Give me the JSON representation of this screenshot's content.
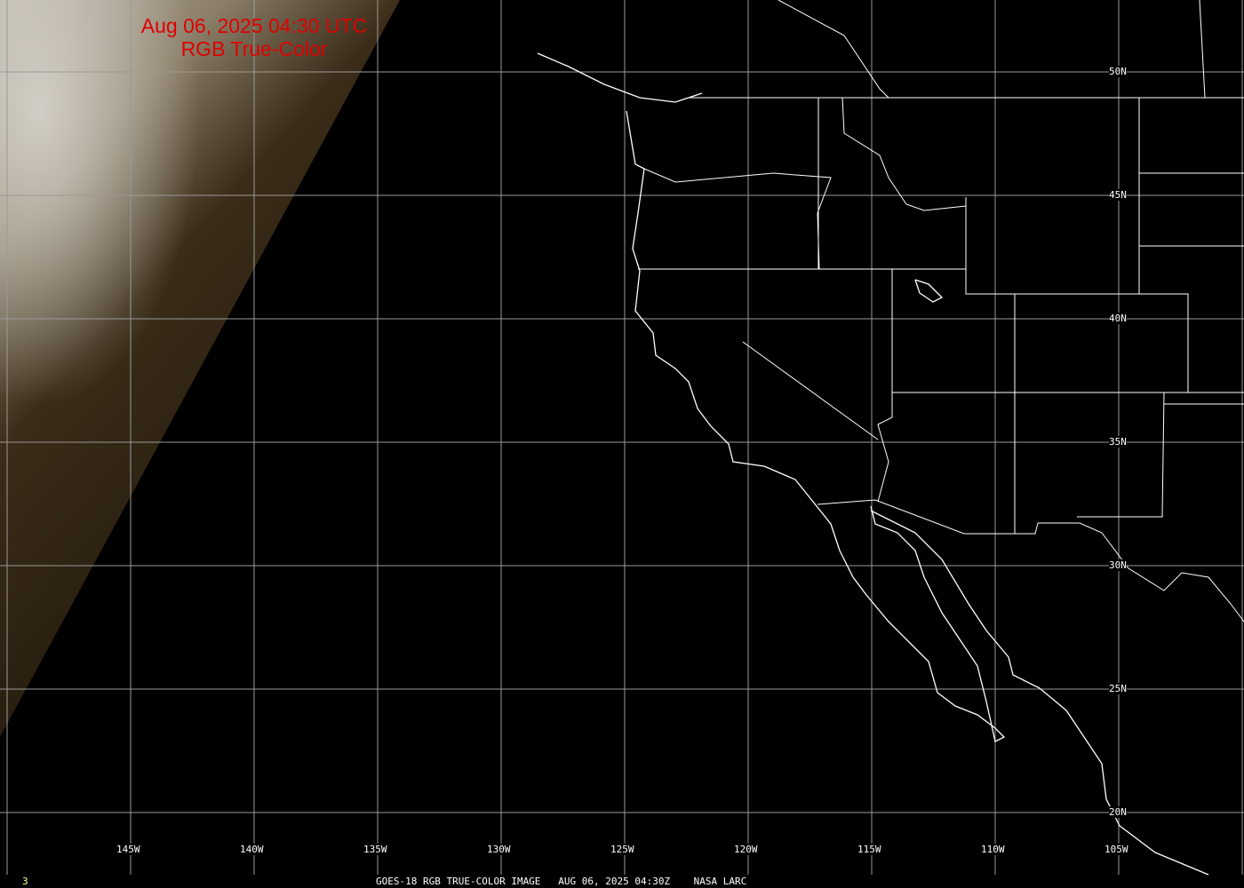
{
  "title": {
    "line1": "Aug 06, 2025 04:30 UTC",
    "line2": "RGB True-Color"
  },
  "footer": {
    "frame": "3",
    "caption": "GOES-18 RGB TRUE-COLOR IMAGE   AUG 06, 2025 04:30Z    NASA LARC"
  },
  "longitude_labels": [
    "145W",
    "140W",
    "135W",
    "130W",
    "125W",
    "120W",
    "115W",
    "110W",
    "105W"
  ],
  "latitude_labels": [
    "50N",
    "45N",
    "40N",
    "35N",
    "30N",
    "25N",
    "20N"
  ],
  "colors": {
    "title": "#e00000",
    "grid": "#9a9a9a",
    "boundaries": "#ffffff",
    "frame_number": "#ffff80"
  }
}
